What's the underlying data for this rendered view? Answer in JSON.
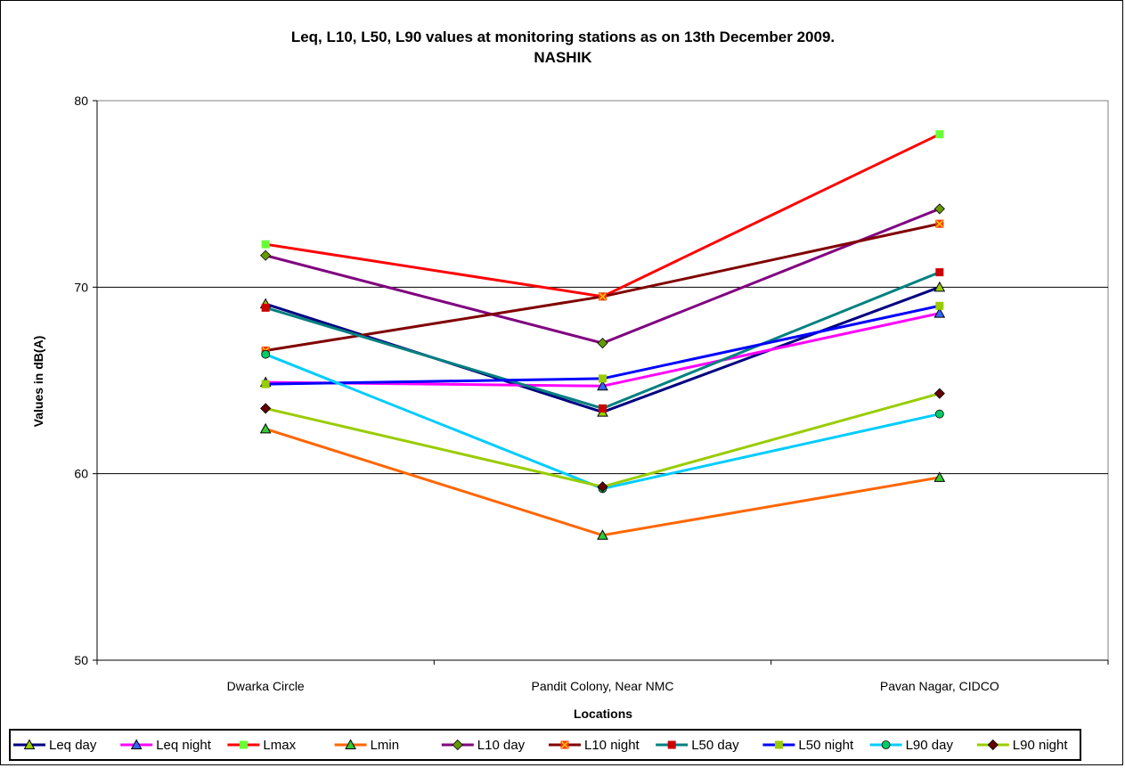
{
  "chart_data": {
    "type": "line",
    "title": "Leq, L10, L50, L90 values at monitoring stations as on 13th December 2009.",
    "subtitle": "NASHIK",
    "xlabel": "Locations",
    "ylabel": "Values in dB(A)",
    "ylim": [
      50,
      80
    ],
    "yticks": [
      "50",
      "60",
      "70",
      "80"
    ],
    "grid": "horizontal major",
    "legend": "bottom",
    "categories": [
      "Dwarka Circle",
      "Pandit Colony, Near NMC",
      "Pavan Nagar, CIDCO"
    ],
    "series": [
      {
        "name": "Leq day",
        "values": [
          69.1,
          63.3,
          70.0
        ],
        "color": "#000080",
        "marker": "triangle",
        "marker_fill": "#99CC00"
      },
      {
        "name": "Leq night",
        "values": [
          64.9,
          64.7,
          68.6
        ],
        "color": "#FF00FF",
        "marker": "triangle",
        "marker_fill": "#3366FF"
      },
      {
        "name": "Lmax",
        "values": [
          72.3,
          69.5,
          78.2
        ],
        "color": "#FF0000",
        "marker": "square",
        "marker_fill": "#66FF33"
      },
      {
        "name": "Lmin",
        "values": [
          62.4,
          56.7,
          59.8
        ],
        "color": "#FF6600",
        "marker": "triangle",
        "marker_fill": "#33CC33"
      },
      {
        "name": "L10 day",
        "values": [
          71.7,
          67.0,
          74.2
        ],
        "color": "#800080",
        "marker": "diamond",
        "marker_fill": "#669900"
      },
      {
        "name": "L10 night",
        "values": [
          66.6,
          69.5,
          73.4
        ],
        "color": "#800000",
        "marker": "x-square",
        "marker_fill": "#FF3300"
      },
      {
        "name": "L50 day",
        "values": [
          68.9,
          63.5,
          70.8
        ],
        "color": "#008080",
        "marker": "square",
        "marker_fill": "#CC0000"
      },
      {
        "name": "L50 night",
        "values": [
          64.8,
          65.1,
          69.0
        ],
        "color": "#0000FF",
        "marker": "square",
        "marker_fill": "#99CC00"
      },
      {
        "name": "L90 day",
        "values": [
          66.4,
          59.2,
          63.2
        ],
        "color": "#00CCFF",
        "marker": "circle",
        "marker_fill": "#00CC66"
      },
      {
        "name": "L90 night",
        "values": [
          63.5,
          59.3,
          64.3
        ],
        "color": "#99CC00",
        "marker": "diamond",
        "marker_fill": "#660000"
      }
    ]
  }
}
